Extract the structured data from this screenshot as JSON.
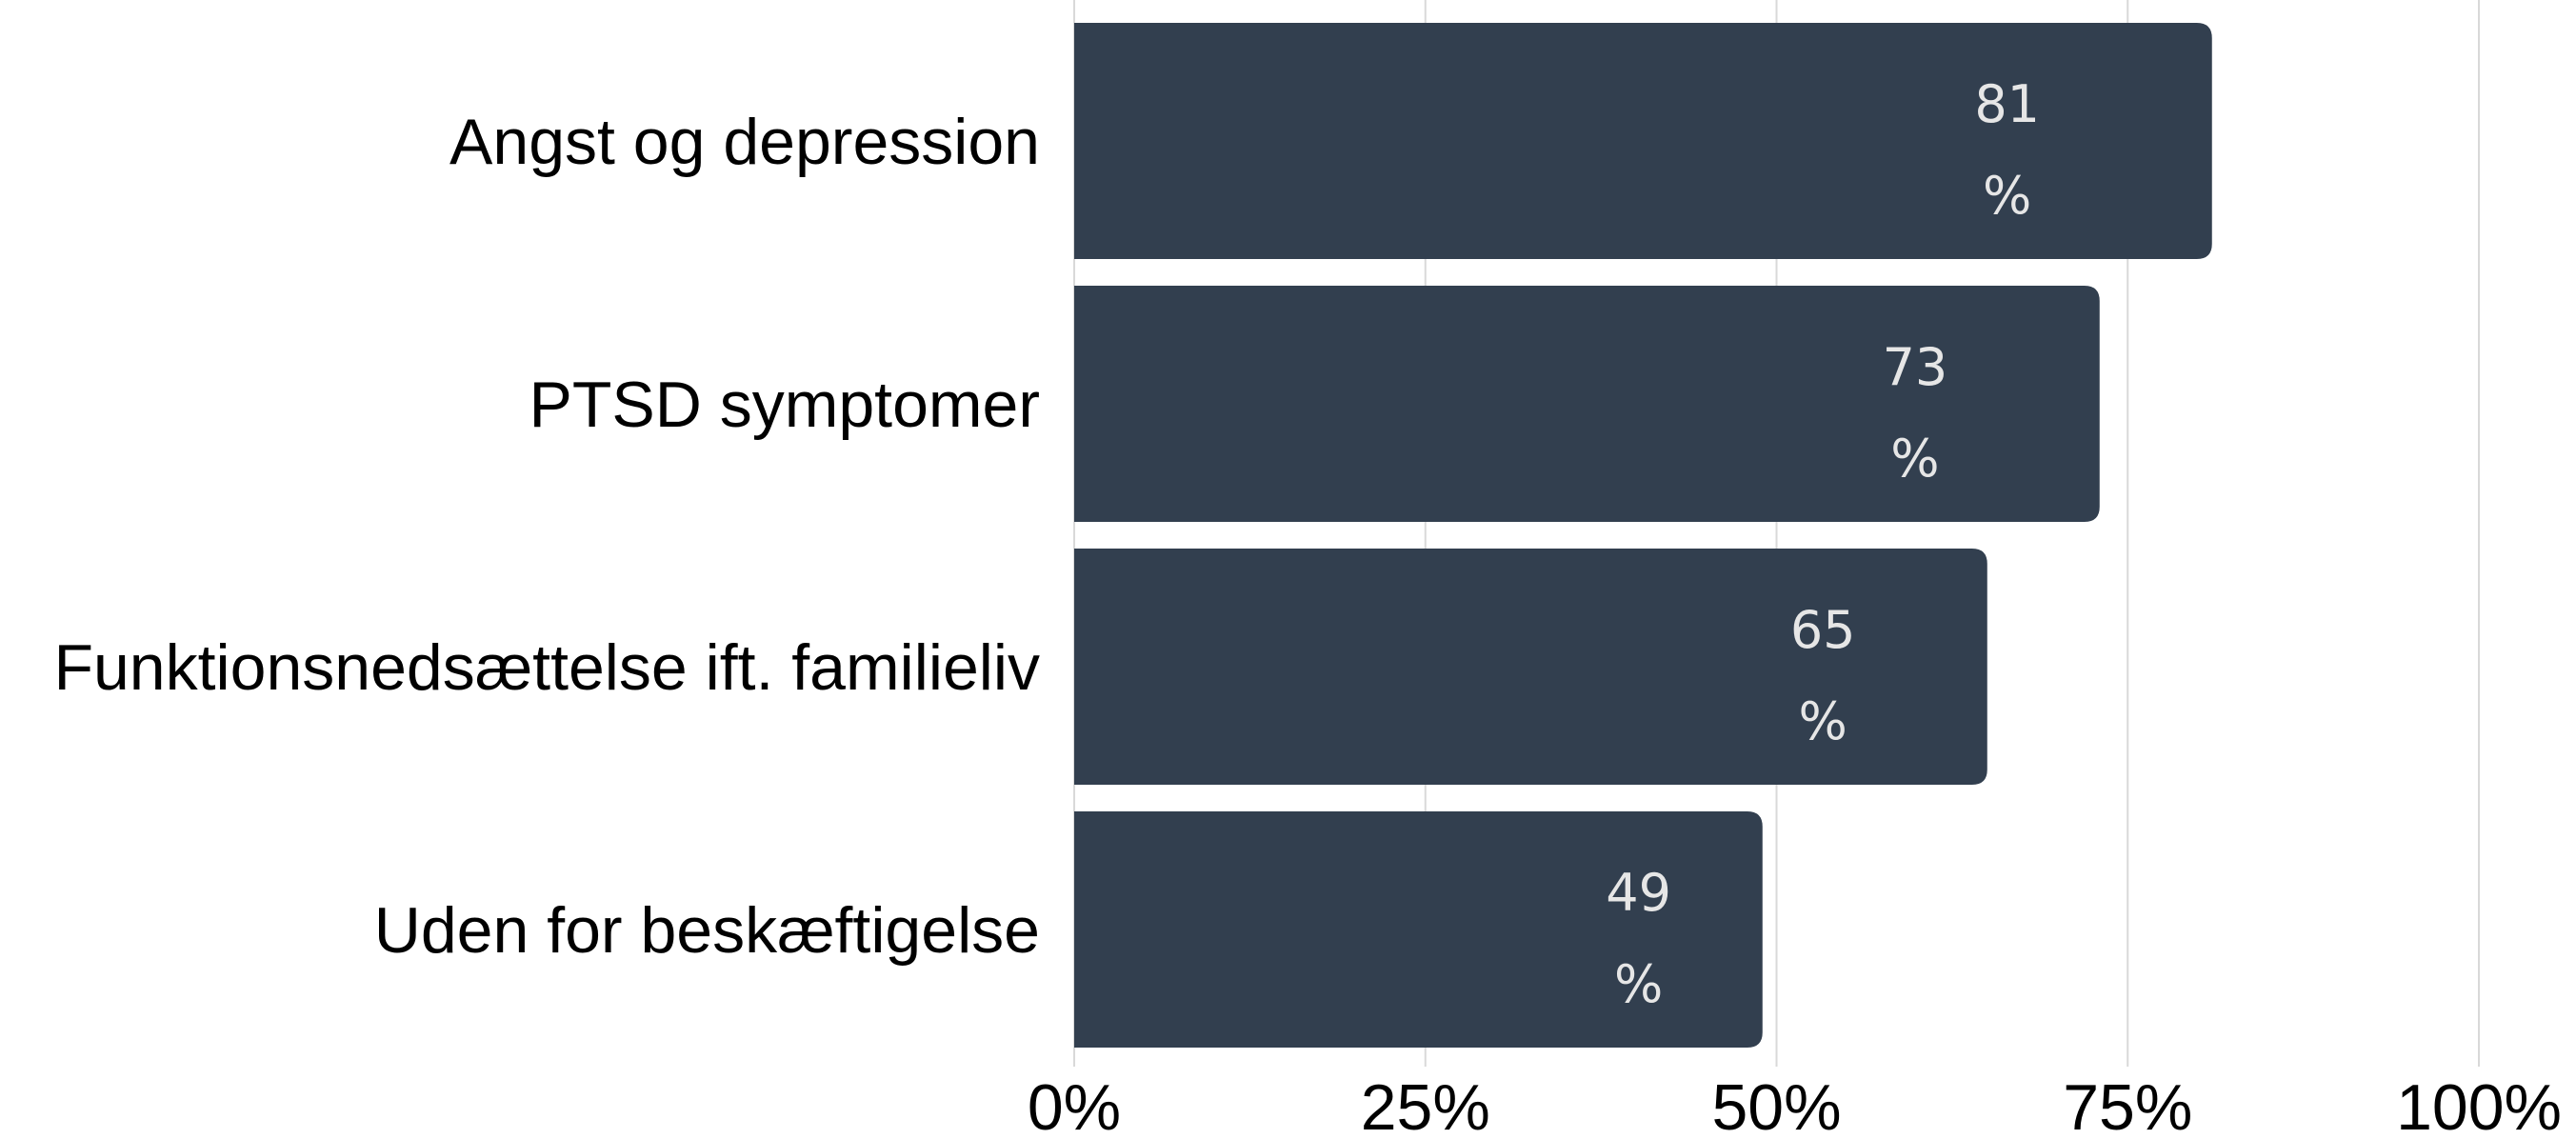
{
  "chart_data": {
    "type": "bar",
    "orientation": "horizontal",
    "categories": [
      "Angst og depression",
      "PTSD symptomer",
      "Funktionsnedsættelse ift. familieliv",
      "Uden for beskæftigelse"
    ],
    "values": [
      81,
      73,
      65,
      49
    ],
    "value_labels": [
      "81",
      "73",
      "65",
      "49"
    ],
    "value_suffix": "%",
    "xlim": [
      0,
      100
    ],
    "x_ticks": [
      0,
      25,
      50,
      75,
      100
    ],
    "x_tick_labels": [
      "0%",
      "25%",
      "50%",
      "75%",
      "100%"
    ],
    "grid": "vertical",
    "legend": "none",
    "title": "",
    "xlabel": "",
    "ylabel": "",
    "colors": {
      "bar": "#323f4f",
      "grid": "#d9d9d9",
      "label": "#e6e6e6",
      "text": "#000000"
    }
  }
}
